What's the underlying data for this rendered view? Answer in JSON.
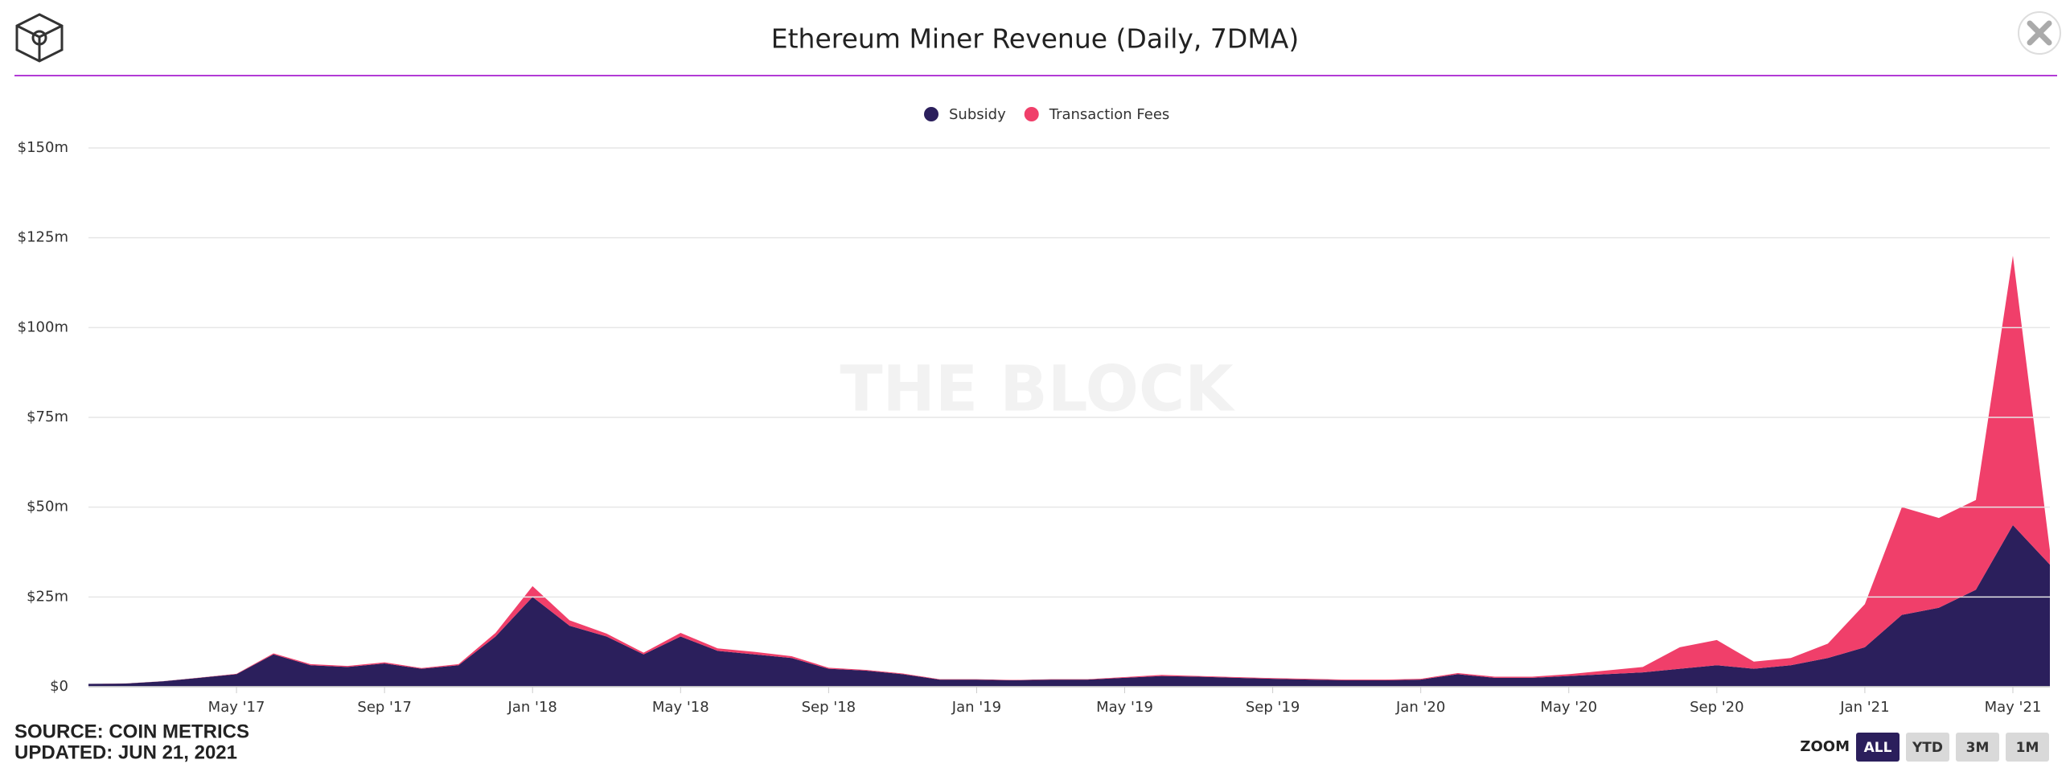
{
  "header": {
    "title": "Ethereum Miner Revenue (Daily, 7DMA)"
  },
  "watermark": "THE BLOCK",
  "source": [
    "SOURCE: COIN METRICS",
    "UPDATED: JUN 21, 2021"
  ],
  "zoom": {
    "label": "ZOOM",
    "buttons": [
      "ALL",
      "YTD",
      "3M",
      "1M"
    ]
  },
  "chart_data": {
    "type": "stacked_area",
    "x": [
      "2017-01",
      "2017-02",
      "2017-03",
      "2017-04",
      "2017-05",
      "2017-06",
      "2017-07",
      "2017-08",
      "2017-09",
      "2017-10",
      "2017-11",
      "2017-12",
      "2018-01",
      "2018-02",
      "2018-03",
      "2018-04",
      "2018-05",
      "2018-06",
      "2018-07",
      "2018-08",
      "2018-09",
      "2018-10",
      "2018-11",
      "2018-12",
      "2019-01",
      "2019-02",
      "2019-03",
      "2019-04",
      "2019-05",
      "2019-06",
      "2019-07",
      "2019-08",
      "2019-09",
      "2019-10",
      "2019-11",
      "2019-12",
      "2020-01",
      "2020-02",
      "2020-03",
      "2020-04",
      "2020-05",
      "2020-06",
      "2020-07",
      "2020-08",
      "2020-09",
      "2020-10",
      "2020-11",
      "2020-12",
      "2021-01",
      "2021-02",
      "2021-03",
      "2021-04",
      "2021-05",
      "2021-06"
    ],
    "series": [
      {
        "name": "Subsidy",
        "color": "#2b1f5c",
        "values": [
          0.8,
          0.9,
          1.5,
          2.5,
          3.5,
          9,
          6,
          5.5,
          6.5,
          5,
          6,
          14,
          25,
          17,
          14,
          9,
          14,
          10,
          9,
          8,
          5,
          4.5,
          3.5,
          2,
          2,
          1.8,
          2,
          2,
          2.5,
          3,
          2.8,
          2.5,
          2.2,
          2,
          1.8,
          1.8,
          2,
          3.5,
          2.5,
          2.5,
          3,
          3.5,
          4,
          5,
          6,
          5,
          6,
          8,
          11,
          20,
          22,
          27,
          45,
          34
        ]
      },
      {
        "name": "Transaction Fees",
        "color": "#f03f6a",
        "values": [
          0.02,
          0.02,
          0.05,
          0.05,
          0.1,
          0.3,
          0.3,
          0.3,
          0.3,
          0.2,
          0.3,
          1,
          3,
          1.5,
          0.8,
          0.5,
          1,
          0.7,
          0.7,
          0.5,
          0.3,
          0.2,
          0.2,
          0.1,
          0.1,
          0.1,
          0.1,
          0.1,
          0.2,
          0.3,
          0.2,
          0.2,
          0.2,
          0.2,
          0.2,
          0.2,
          0.2,
          0.3,
          0.3,
          0.3,
          0.5,
          1,
          1.5,
          6,
          7,
          2,
          2,
          4,
          12,
          30,
          25,
          25,
          75,
          4
        ]
      }
    ],
    "xlim": [
      "2017-01",
      "2021-06"
    ],
    "xticks": [
      {
        "value": "2017-05",
        "label": "May '17"
      },
      {
        "value": "2017-09",
        "label": "Sep '17"
      },
      {
        "value": "2018-01",
        "label": "Jan '18"
      },
      {
        "value": "2018-05",
        "label": "May '18"
      },
      {
        "value": "2018-09",
        "label": "Sep '18"
      },
      {
        "value": "2019-01",
        "label": "Jan '19"
      },
      {
        "value": "2019-05",
        "label": "May '19"
      },
      {
        "value": "2019-09",
        "label": "Sep '19"
      },
      {
        "value": "2020-01",
        "label": "Jan '20"
      },
      {
        "value": "2020-05",
        "label": "May '20"
      },
      {
        "value": "2020-09",
        "label": "Sep '20"
      },
      {
        "value": "2021-01",
        "label": "Jan '21"
      },
      {
        "value": "2021-05",
        "label": "May '21"
      }
    ],
    "ylim": [
      0,
      150
    ],
    "yticks": [
      {
        "value": 0,
        "label": "$0"
      },
      {
        "value": 25,
        "label": "$25m"
      },
      {
        "value": 50,
        "label": "$50m"
      },
      {
        "value": 75,
        "label": "$75m"
      },
      {
        "value": 100,
        "label": "$100m"
      },
      {
        "value": 125,
        "label": "$125m"
      },
      {
        "value": 150,
        "label": "$150m"
      }
    ],
    "grid": true,
    "legend": "top"
  }
}
